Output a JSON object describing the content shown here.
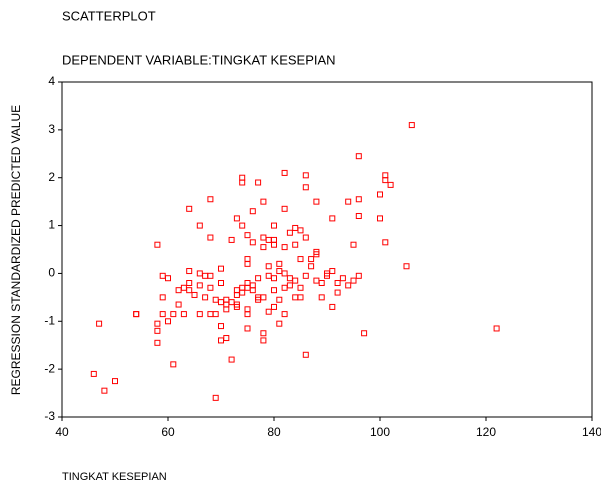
{
  "chart_data": {
    "type": "scatter",
    "title": "SCATTERPLOT",
    "subtitle": "DEPENDENT VARIABLE:TINGKAT KESEPIAN",
    "x_label": "TINGKAT KESEPIAN",
    "y_label": "REGRESSION STANDARDIZED PREDICTED VALUE",
    "color": "#ff0000",
    "xlim": [
      40,
      140
    ],
    "xticks": [
      40,
      60,
      80,
      100,
      120,
      140
    ],
    "ylim": [
      -3,
      4
    ],
    "yticks": [
      -3,
      -2,
      -1,
      0,
      1,
      2,
      3,
      4
    ],
    "x": [
      46,
      47,
      48,
      50,
      54,
      54,
      58,
      58,
      58,
      58,
      59,
      59,
      59,
      60,
      60,
      61,
      61,
      62,
      62,
      63,
      63,
      64,
      64,
      64,
      64,
      65,
      66,
      66,
      66,
      66,
      67,
      67,
      68,
      68,
      68,
      68,
      68,
      69,
      69,
      69,
      70,
      70,
      70,
      70,
      70,
      71,
      71,
      71,
      71,
      72,
      72,
      72,
      73,
      73,
      73,
      73,
      73,
      74,
      74,
      74,
      74,
      74,
      75,
      75,
      75,
      75,
      75,
      75,
      75,
      75,
      76,
      76,
      76,
      76,
      77,
      77,
      77,
      77,
      78,
      78,
      78,
      78,
      78,
      78,
      79,
      79,
      79,
      79,
      80,
      80,
      80,
      80,
      80,
      80,
      81,
      81,
      81,
      81,
      82,
      82,
      82,
      82,
      82,
      82,
      83,
      83,
      83,
      84,
      84,
      84,
      84,
      85,
      85,
      85,
      85,
      86,
      86,
      86,
      86,
      86,
      87,
      87,
      88,
      88,
      88,
      88,
      89,
      89,
      90,
      90,
      91,
      91,
      91,
      92,
      92,
      93,
      94,
      94,
      95,
      95,
      96,
      96,
      96,
      96,
      97,
      100,
      100,
      101,
      101,
      101,
      102,
      105,
      106,
      122
    ],
    "values": [
      -2.1,
      -1.05,
      -2.45,
      -2.25,
      -0.85,
      -0.85,
      0.6,
      -1.05,
      -1.2,
      -1.45,
      -0.5,
      -0.85,
      -0.05,
      -0.1,
      -1.0,
      -0.85,
      -1.9,
      -0.65,
      -0.35,
      -0.85,
      -0.3,
      1.35,
      0.05,
      -0.2,
      -0.35,
      -0.45,
      1.0,
      0.0,
      -0.25,
      -0.85,
      -0.05,
      -0.5,
      1.55,
      0.75,
      -0.85,
      -0.3,
      -0.05,
      -0.85,
      -0.55,
      -2.6,
      0.1,
      -0.2,
      -0.6,
      -1.1,
      -1.4,
      -0.55,
      -0.65,
      -1.35,
      -0.75,
      0.7,
      -0.6,
      -1.8,
      1.15,
      -0.35,
      -0.45,
      -0.7,
      -0.65,
      2.0,
      1.9,
      1.0,
      -0.4,
      -0.3,
      0.8,
      0.3,
      0.2,
      -0.2,
      -0.3,
      -0.75,
      -0.85,
      -1.15,
      1.3,
      0.65,
      -0.25,
      -0.35,
      1.9,
      -0.1,
      -0.5,
      -0.55,
      1.5,
      0.75,
      0.55,
      -0.5,
      -1.25,
      -1.4,
      0.7,
      0.15,
      -0.05,
      -0.8,
      1.0,
      0.6,
      0.7,
      -0.1,
      -0.35,
      -0.7,
      0.2,
      0.05,
      -0.55,
      -1.05,
      2.1,
      1.35,
      0.55,
      0.0,
      -0.3,
      -0.85,
      0.85,
      -0.1,
      -0.25,
      0.95,
      0.6,
      -0.15,
      -0.5,
      0.9,
      0.3,
      -0.3,
      -0.5,
      2.05,
      1.8,
      0.75,
      -0.05,
      -1.7,
      0.3,
      0.15,
      1.5,
      0.45,
      0.4,
      -0.15,
      -0.2,
      -0.5,
      0.0,
      -0.05,
      0.05,
      1.15,
      -0.7,
      -0.2,
      -0.4,
      -0.1,
      1.5,
      -0.25,
      0.6,
      -0.15,
      2.45,
      1.55,
      1.2,
      -0.05,
      -1.25,
      1.65,
      1.15,
      2.05,
      1.95,
      0.65,
      1.85,
      0.15,
      3.1,
      -1.15
    ]
  }
}
